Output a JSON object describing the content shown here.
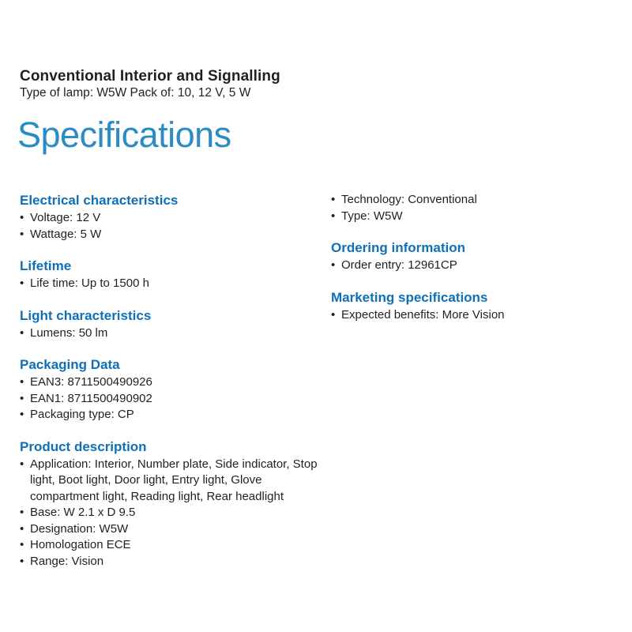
{
  "header": {
    "product_line": "Conventional Interior and Signalling",
    "product_details": "Type of lamp: W5W Pack of: 10, 12 V, 5 W",
    "page_title": "Specifications"
  },
  "colors": {
    "section_heading_blue": "#0f6fb7",
    "page_title_blue": "#2b8bc3",
    "body_text": "#231f20"
  },
  "columns": {
    "left": {
      "sections": [
        {
          "heading": "Electrical characteristics",
          "items": [
            "Voltage: 12 V",
            "Wattage: 5 W"
          ]
        },
        {
          "heading": "Lifetime",
          "items": [
            "Life time: Up to 1500 h"
          ]
        },
        {
          "heading": "Light characteristics",
          "items": [
            "Lumens: 50 lm"
          ]
        },
        {
          "heading": "Packaging Data",
          "items": [
            "EAN3: 8711500490926",
            "EAN1: 8711500490902",
            "Packaging type: CP"
          ]
        },
        {
          "heading": "Product description",
          "items": [
            "Application: Interior, Number plate, Side indicator, Stop light, Boot light, Door light, Entry light, Glove compartment light, Reading light, Rear headlight",
            "Base: W 2.1 x D 9.5",
            "Designation: W5W",
            "Homologation ECE",
            "Range: Vision"
          ]
        }
      ]
    },
    "right": {
      "sections": [
        {
          "items": [
            "Technology: Conventional",
            "Type: W5W"
          ]
        },
        {
          "heading": "Ordering information",
          "items": [
            "Order entry: 12961CP"
          ]
        },
        {
          "heading": "Marketing specifications",
          "items": [
            "Expected benefits: More Vision"
          ]
        }
      ]
    }
  }
}
